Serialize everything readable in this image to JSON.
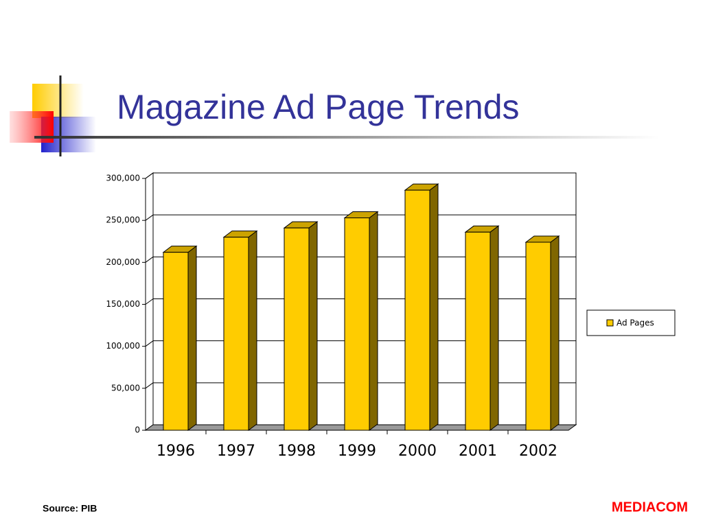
{
  "chart_data": {
    "type": "bar3d",
    "title": "Magazine Ad Page Trends",
    "categories": [
      "1996",
      "1997",
      "1998",
      "1999",
      "2000",
      "2001",
      "2002"
    ],
    "series": [
      {
        "name": "Ad Pages",
        "color": "#ffcc00",
        "values": [
          212000,
          230000,
          241000,
          253000,
          286000,
          236000,
          224000
        ]
      }
    ],
    "ylim": [
      0,
      300000
    ],
    "yticks": [
      0,
      {
        "value": 50000,
        "label": "50,000"
      },
      {
        "value": 100000,
        "label": "100,000"
      },
      {
        "value": 150000,
        "label": "150,000"
      },
      {
        "value": 200000,
        "label": "200,000"
      },
      {
        "value": 250000,
        "label": "250,000"
      },
      {
        "value": 300000,
        "label": "300,000"
      }
    ],
    "grid": true,
    "legend": "right",
    "source": "Source: PIB",
    "brand": "MEDIACOM"
  }
}
